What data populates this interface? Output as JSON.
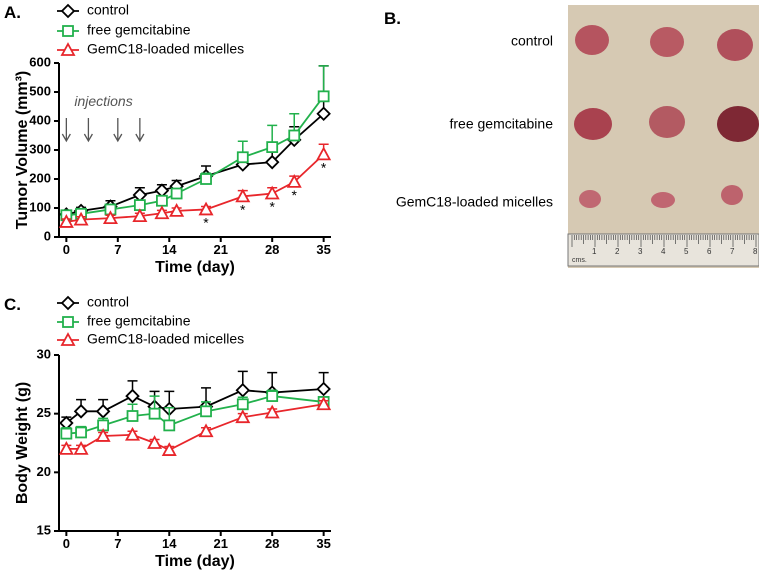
{
  "panel_labels": {
    "a": "A.",
    "b": "B.",
    "c": "C."
  },
  "photo": {
    "row_labels": [
      "control",
      "free gemcitabine",
      "GemC18-loaded micelles"
    ],
    "ruler_labels": [
      "1",
      "2",
      "3",
      "4",
      "5",
      "6",
      "7",
      "8"
    ],
    "ruler_unit": "cms."
  },
  "chart_data": [
    {
      "type": "line",
      "x_label": "Time (day)",
      "y_label": "Tumor Volume (mm³)",
      "x": [
        0,
        2,
        6,
        10,
        13,
        15,
        19,
        24,
        28,
        31,
        35
      ],
      "xlim": [
        -1,
        36
      ],
      "xticks": [
        0,
        7,
        14,
        21,
        28,
        35
      ],
      "ylim": [
        0,
        600
      ],
      "yticks": [
        0,
        100,
        200,
        300,
        400,
        500,
        600
      ],
      "series": [
        {
          "name": "control",
          "color": "#000000",
          "marker": "diamond",
          "values": [
            78,
            90,
            105,
            145,
            160,
            175,
            210,
            250,
            258,
            335,
            425
          ],
          "errors": [
            10,
            12,
            20,
            25,
            20,
            20,
            35,
            40,
            40,
            45,
            165
          ]
        },
        {
          "name": "free gemcitabine",
          "color": "#22b14c",
          "marker": "square",
          "values": [
            75,
            80,
            95,
            110,
            125,
            150,
            200,
            275,
            310,
            350,
            485
          ],
          "errors": [
            10,
            10,
            15,
            15,
            15,
            15,
            20,
            55,
            75,
            75,
            105
          ]
        },
        {
          "name": "GemC18-loaded micelles",
          "color": "#e8262b",
          "marker": "triangle",
          "values": [
            52,
            60,
            65,
            72,
            82,
            90,
            95,
            140,
            150,
            190,
            285
          ],
          "errors": [
            10,
            10,
            10,
            10,
            10,
            10,
            10,
            20,
            20,
            20,
            35
          ]
        }
      ],
      "annotation": "injections",
      "injection_days": [
        0,
        3,
        7,
        10
      ],
      "significance": [
        {
          "x": 19,
          "text": "*"
        },
        {
          "x": 24,
          "text": "*"
        },
        {
          "x": 28,
          "text": "*"
        },
        {
          "x": 31,
          "text": "*"
        },
        {
          "x": 35,
          "text": "*"
        }
      ]
    },
    {
      "type": "line",
      "x_label": "Time (day)",
      "y_label": "Body Weight (g)",
      "x": [
        0,
        2,
        5,
        9,
        12,
        14,
        19,
        24,
        28,
        35
      ],
      "xlim": [
        -1,
        36
      ],
      "xticks": [
        0,
        7,
        14,
        21,
        28,
        35
      ],
      "ylim": [
        15,
        30
      ],
      "yticks": [
        15,
        20,
        25,
        30
      ],
      "series": [
        {
          "name": "control",
          "color": "#000000",
          "marker": "diamond",
          "values": [
            24.2,
            25.2,
            25.2,
            26.5,
            25.6,
            25.4,
            25.6,
            27.0,
            26.8,
            27.1
          ],
          "errors": [
            0.5,
            1.0,
            1.0,
            1.3,
            1.3,
            1.5,
            1.6,
            1.6,
            1.7,
            1.4
          ]
        },
        {
          "name": "free gemcitabine",
          "color": "#22b14c",
          "marker": "square",
          "values": [
            23.3,
            23.4,
            24.0,
            24.8,
            25.0,
            24.0,
            25.2,
            25.8,
            26.5,
            26.0
          ],
          "errors": [
            0.5,
            0.5,
            0.6,
            1.0,
            1.5,
            1.5,
            0.8,
            0.6,
            0.5,
            0.4
          ]
        },
        {
          "name": "GemC18-loaded micelles",
          "color": "#e8262b",
          "marker": "triangle",
          "values": [
            22.0,
            22.0,
            23.1,
            23.2,
            22.5,
            21.9,
            23.5,
            24.7,
            25.1,
            25.8
          ],
          "errors": [
            0.3,
            0.3,
            0.3,
            0.3,
            0.3,
            0.3,
            0.3,
            0.3,
            0.3,
            0.3
          ]
        }
      ]
    }
  ]
}
